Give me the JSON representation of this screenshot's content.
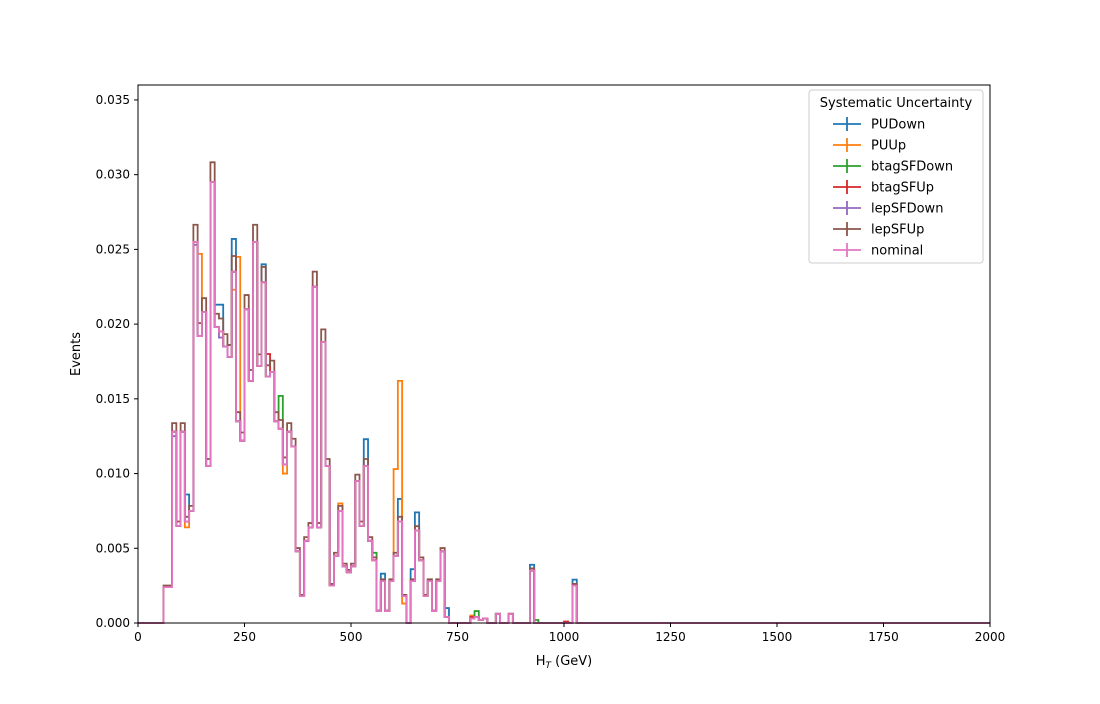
{
  "chart_data": {
    "type": "line",
    "subtype": "step-histogram",
    "title": "",
    "xlabel": "H_T (GeV)",
    "ylabel": "Events",
    "xlim": [
      0,
      2000
    ],
    "ylim": [
      0,
      0.036
    ],
    "grid": false,
    "legend_title": "Systematic Uncertainty",
    "legend_position": "top-right",
    "x_ticks": [
      0,
      250,
      500,
      750,
      1000,
      1250,
      1500,
      1750,
      2000
    ],
    "x_tick_labels": [
      "0",
      "250",
      "500",
      "750",
      "1000",
      "1250",
      "1500",
      "1750",
      "2000"
    ],
    "y_ticks": [
      0,
      0.005,
      0.01,
      0.015,
      0.02,
      0.025,
      0.03,
      0.035
    ],
    "y_tick_labels": [
      "0.000",
      "0.005",
      "0.010",
      "0.015",
      "0.020",
      "0.025",
      "0.030",
      "0.035"
    ],
    "bin_width": 10,
    "bin_edges_start": 0,
    "nominal": [
      0,
      0,
      0,
      0,
      0,
      0,
      0.0024,
      0.0024,
      0.0128,
      0.0065,
      0.0128,
      0.0068,
      0.0075,
      0.0255,
      0.0192,
      0.0208,
      0.0105,
      0.0295,
      0.0198,
      0.0195,
      0.0185,
      0.0178,
      0.0235,
      0.0135,
      0.0122,
      0.021,
      0.0162,
      0.0255,
      0.0172,
      0.0228,
      0.0165,
      0.0168,
      0.0135,
      0.013,
      0.0106,
      0.0128,
      0.0118,
      0.0048,
      0.0018,
      0.0055,
      0.0064,
      0.0225,
      0.0064,
      0.0188,
      0.0105,
      0.0025,
      0.0045,
      0.0075,
      0.0038,
      0.0034,
      0.0038,
      0.0095,
      0.0065,
      0.0105,
      0.0055,
      0.0042,
      0.0008,
      0.0028,
      0.0008,
      0.0028,
      0.0045,
      0.0068,
      0.0018,
      0,
      0.0028,
      0.0062,
      0.0042,
      0.0018,
      0.0028,
      0.0008,
      0.0028,
      0.0048,
      0.0004,
      0,
      0,
      0,
      0,
      0,
      0.0003,
      0.0004,
      0.0002,
      0.0003,
      0,
      0,
      0.0006,
      0,
      0,
      0.0006,
      0,
      0,
      0,
      0,
      0.0035,
      0,
      0,
      0,
      0,
      0,
      0,
      0,
      0,
      0,
      0.0025,
      0
    ],
    "series": [
      {
        "name": "PUDown",
        "color": "#1f77b4",
        "deltas": {
          "11": 0.0018,
          "18": 0.0015,
          "19": 0.0018,
          "21": 0.0008,
          "22": 0.0022,
          "29": 0.0012,
          "53": 0.0018,
          "57": 0.0005,
          "61": 0.0015,
          "64": 0.0008,
          "65": 0.0012,
          "72": 0.0006,
          "92": 0.0004,
          "102": 0.0004
        }
      },
      {
        "name": "PUUp",
        "color": "#ff7f0e",
        "deltas": {
          "11": -0.0004,
          "14": 0.0055,
          "22": -0.0012,
          "23": 0.011,
          "34": -0.0006,
          "47": 0.0005,
          "60": 0.0058,
          "61": 0.0094,
          "62": -0.0005,
          "78": 0.0002
        }
      },
      {
        "name": "btagSFDown",
        "color": "#2ca02c",
        "deltas": {
          "33": 0.0022,
          "55": 0.0005,
          "79": 0.0004,
          "93": 0.0002
        }
      },
      {
        "name": "btagSFUp",
        "color": "#d62728",
        "deltas": {
          "30": 0.0015,
          "78": 0.0001,
          "100": 0.0001
        }
      },
      {
        "name": "lepSFDown",
        "color": "#9467bd",
        "deltas": {
          "8": -0.0003,
          "13": -0.0002,
          "19": -0.0004
        }
      },
      {
        "name": "lepSFUp",
        "color": "#8c564b",
        "scale": 1.045
      },
      {
        "name": "nominal",
        "color": "#e377c2"
      }
    ]
  }
}
